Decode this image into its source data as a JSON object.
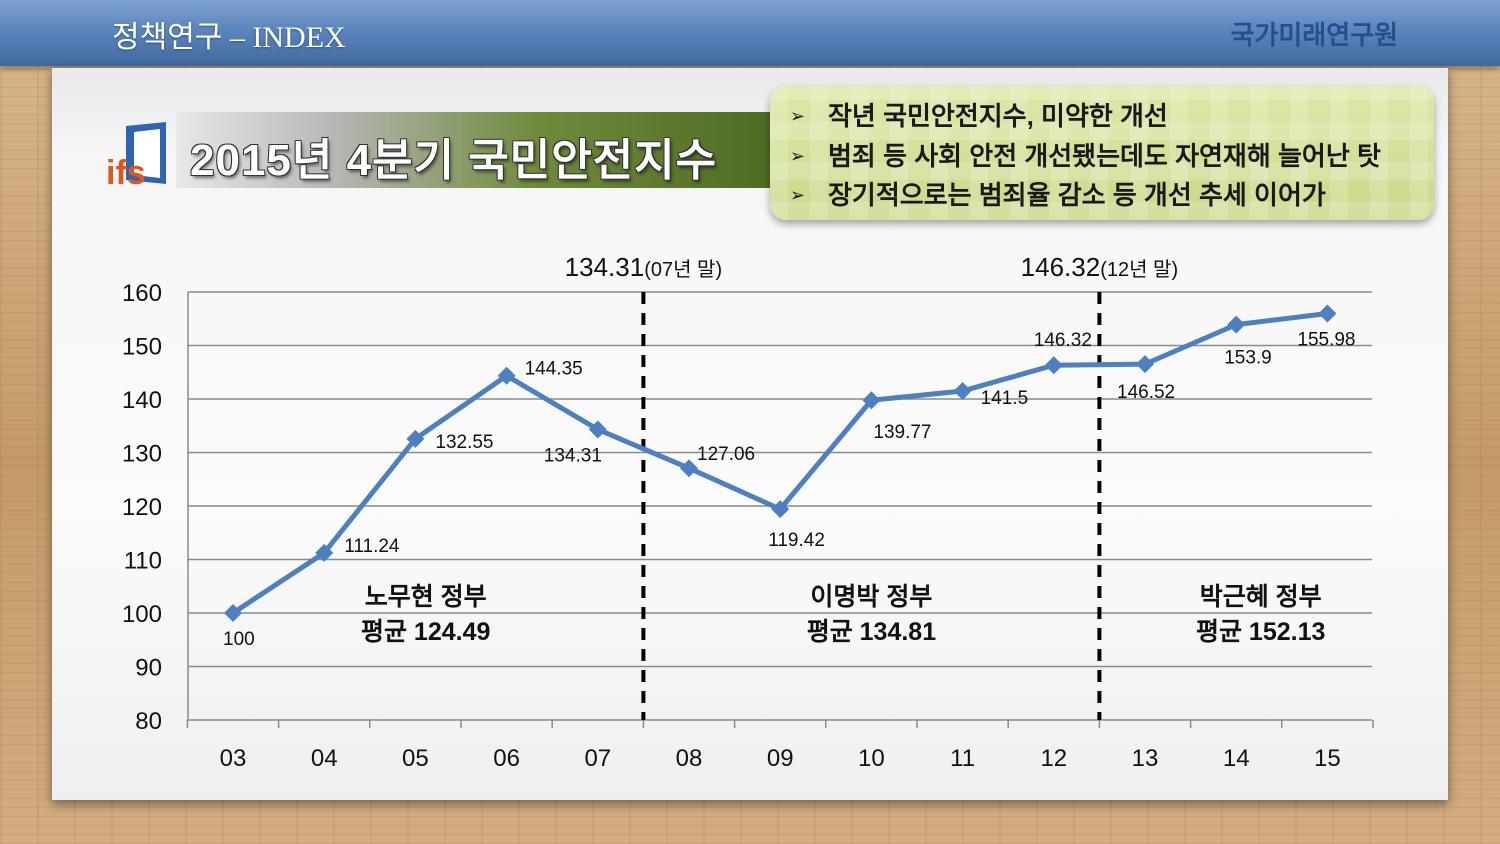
{
  "header": {
    "title": "정책연구 – INDEX",
    "org": "국가미래연구원"
  },
  "logo": {
    "text": "ifs",
    "icon": "ifs-logo-icon"
  },
  "main_title": "2015년 4분기 국민안전지수",
  "bullets": [
    "작년 국민안전지수, 미약한 개선",
    "범죄 등 사회 안전 개선됐는데도 자연재해 늘어난 탓",
    "장기적으로는 범죄율 감소 등 개선 추세 이어가"
  ],
  "bullet_glyph": "➢",
  "colors": {
    "line": "#4e7fc0",
    "grid": "#8a8a8a",
    "title_band": "#55722a",
    "header_bar": "#5b85bd"
  },
  "chart_data": {
    "type": "line",
    "categories": [
      "03",
      "04",
      "05",
      "06",
      "07",
      "08",
      "09",
      "10",
      "11",
      "12",
      "13",
      "14",
      "15"
    ],
    "series": [
      {
        "values": [
          100,
          111.24,
          132.55,
          144.35,
          134.31,
          127.06,
          119.42,
          139.77,
          141.5,
          146.32,
          146.52,
          153.9,
          155.98
        ]
      }
    ],
    "data_labels": [
      "100",
      "111.24",
      "132.55",
      "144.35",
      "134.31",
      "127.06",
      "119.42",
      "139.77",
      "141.5",
      "146.32",
      "146.52",
      "153.9",
      "155.98"
    ],
    "ylim": [
      80,
      160
    ],
    "yticks": [
      "80",
      "90",
      "100",
      "110",
      "120",
      "130",
      "140",
      "150",
      "160"
    ],
    "grid": true,
    "dividers": [
      {
        "after_category": "07",
        "value_text": "134.31",
        "note": "(07년 말)"
      },
      {
        "after_category": "12",
        "value_text": "146.32",
        "note": "(12년 말)"
      }
    ],
    "eras": [
      {
        "name": "노무현 정부",
        "avg": "평균 124.49"
      },
      {
        "name": "이명박 정부",
        "avg": "평균 134.81"
      },
      {
        "name": "박근혜 정부",
        "avg": "평균 152.13"
      }
    ]
  }
}
